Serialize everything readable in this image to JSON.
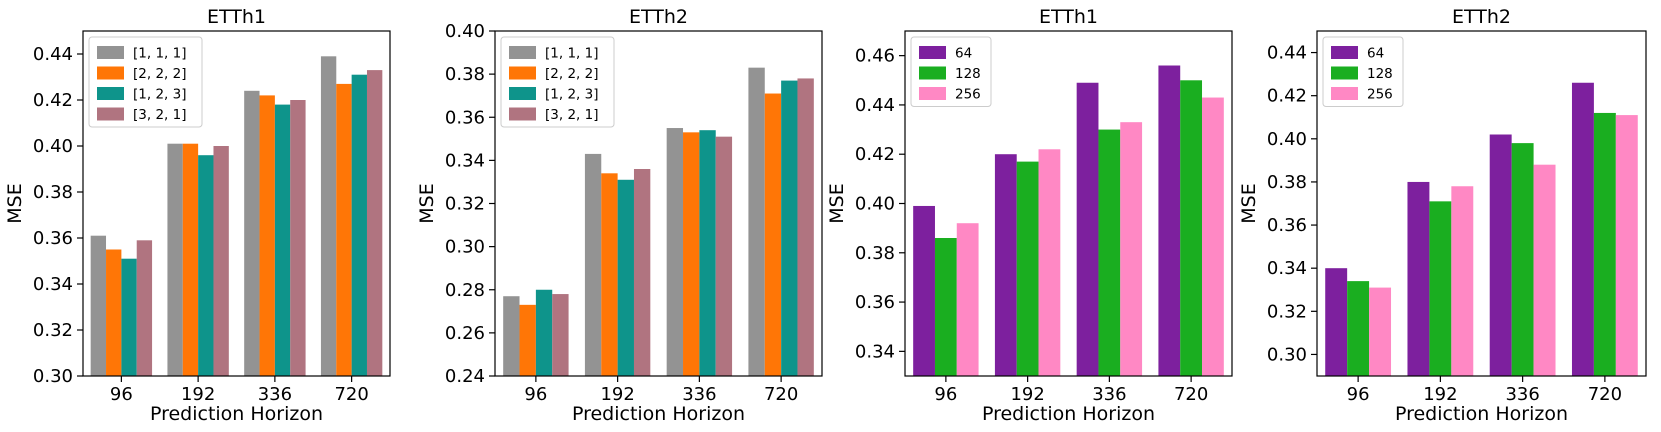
{
  "chart_data": [
    {
      "type": "bar",
      "title": "ETTh1",
      "xlabel": "Prediction Horizon",
      "ylabel": "MSE",
      "categories": [
        "96",
        "192",
        "336",
        "720"
      ],
      "ylim": [
        0.3,
        0.45
      ],
      "yticks": [
        0.3,
        0.32,
        0.34,
        0.36,
        0.38,
        0.4,
        0.42,
        0.44
      ],
      "ytick_labels": [
        "0.30",
        "0.32",
        "0.34",
        "0.36",
        "0.38",
        "0.40",
        "0.42",
        "0.44"
      ],
      "legend_position": "top-left",
      "series": [
        {
          "name": "[1, 1, 1]",
          "color": "#939393",
          "values": [
            0.361,
            0.401,
            0.424,
            0.439
          ]
        },
        {
          "name": "[2, 2, 2]",
          "color": "#ff7606",
          "values": [
            0.355,
            0.401,
            0.422,
            0.427
          ]
        },
        {
          "name": "[1, 2, 3]",
          "color": "#0e948b",
          "values": [
            0.351,
            0.396,
            0.418,
            0.431
          ]
        },
        {
          "name": "[3, 2, 1]",
          "color": "#b07480",
          "values": [
            0.359,
            0.4,
            0.42,
            0.433
          ]
        }
      ]
    },
    {
      "type": "bar",
      "title": "ETTh2",
      "xlabel": "Prediction Horizon",
      "ylabel": "MSE",
      "categories": [
        "96",
        "192",
        "336",
        "720"
      ],
      "ylim": [
        0.24,
        0.4
      ],
      "yticks": [
        0.24,
        0.26,
        0.28,
        0.3,
        0.32,
        0.34,
        0.36,
        0.38,
        0.4
      ],
      "ytick_labels": [
        "0.24",
        "0.26",
        "0.28",
        "0.30",
        "0.32",
        "0.34",
        "0.36",
        "0.38",
        "0.40"
      ],
      "legend_position": "top-left",
      "series": [
        {
          "name": "[1, 1, 1]",
          "color": "#939393",
          "values": [
            0.277,
            0.343,
            0.355,
            0.383
          ]
        },
        {
          "name": "[2, 2, 2]",
          "color": "#ff7606",
          "values": [
            0.273,
            0.334,
            0.353,
            0.371
          ]
        },
        {
          "name": "[1, 2, 3]",
          "color": "#0e948b",
          "values": [
            0.28,
            0.331,
            0.354,
            0.377
          ]
        },
        {
          "name": "[3, 2, 1]",
          "color": "#b07480",
          "values": [
            0.278,
            0.336,
            0.351,
            0.378
          ]
        }
      ]
    },
    {
      "type": "bar",
      "title": "ETTh1",
      "xlabel": "Prediction Horizon",
      "ylabel": "MSE",
      "categories": [
        "96",
        "192",
        "336",
        "720"
      ],
      "ylim": [
        0.33,
        0.47
      ],
      "yticks": [
        0.34,
        0.36,
        0.38,
        0.4,
        0.42,
        0.44,
        0.46
      ],
      "ytick_labels": [
        "0.34",
        "0.36",
        "0.38",
        "0.40",
        "0.42",
        "0.44",
        "0.46"
      ],
      "legend_position": "top-left",
      "series": [
        {
          "name": "64",
          "color": "#7d209e",
          "values": [
            0.399,
            0.42,
            0.449,
            0.456
          ]
        },
        {
          "name": "128",
          "color": "#1aae20",
          "values": [
            0.386,
            0.417,
            0.43,
            0.45
          ]
        },
        {
          "name": "256",
          "color": "#ff88c4",
          "values": [
            0.392,
            0.422,
            0.433,
            0.443
          ]
        }
      ]
    },
    {
      "type": "bar",
      "title": "ETTh2",
      "xlabel": "Prediction Horizon",
      "ylabel": "MSE",
      "categories": [
        "96",
        "192",
        "336",
        "720"
      ],
      "ylim": [
        0.29,
        0.45
      ],
      "yticks": [
        0.3,
        0.32,
        0.34,
        0.36,
        0.38,
        0.4,
        0.42,
        0.44
      ],
      "ytick_labels": [
        "0.30",
        "0.32",
        "0.34",
        "0.36",
        "0.38",
        "0.40",
        "0.42",
        "0.44"
      ],
      "legend_position": "top-left",
      "series": [
        {
          "name": "64",
          "color": "#7d209e",
          "values": [
            0.34,
            0.38,
            0.402,
            0.426
          ]
        },
        {
          "name": "128",
          "color": "#1aae20",
          "values": [
            0.334,
            0.371,
            0.398,
            0.412
          ]
        },
        {
          "name": "256",
          "color": "#ff88c4",
          "values": [
            0.331,
            0.378,
            0.388,
            0.411
          ]
        }
      ]
    }
  ]
}
